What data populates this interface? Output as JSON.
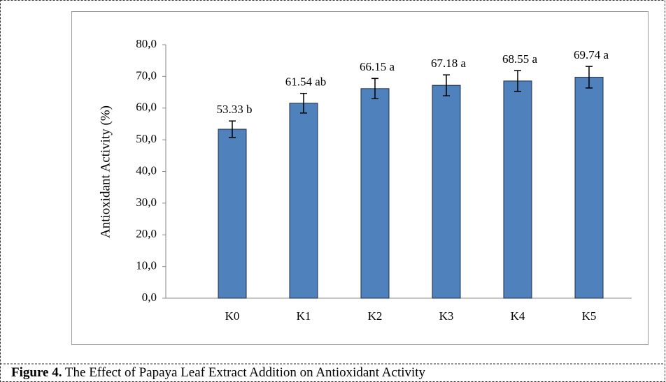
{
  "chart_data": {
    "type": "bar",
    "y_label": "Antioxidant  Activity   (%)",
    "categories": [
      "K0",
      "K1",
      "K2",
      "K3",
      "K4",
      "K5"
    ],
    "values": [
      53.33,
      61.54,
      66.15,
      67.18,
      68.55,
      69.74
    ],
    "value_labels": [
      "53.33 b",
      "61.54 ab",
      "66.15 a",
      "67.18 a",
      "68.55 a",
      "69.74 a"
    ],
    "errors": [
      2.6,
      3.1,
      3.2,
      3.3,
      3.3,
      3.4
    ],
    "color": "#4f81bd",
    "ylim": [
      0,
      80
    ],
    "yticks": [
      {
        "value": 0,
        "label": "0,0"
      },
      {
        "value": 10,
        "label": "10,0"
      },
      {
        "value": 20,
        "label": "20,0"
      },
      {
        "value": 30,
        "label": "30,0"
      },
      {
        "value": 40,
        "label": "40,0"
      },
      {
        "value": 50,
        "label": "50,0"
      },
      {
        "value": 60,
        "label": "60,0"
      },
      {
        "value": 70,
        "label": "70,0"
      },
      {
        "value": 80,
        "label": "80,0"
      }
    ],
    "grid": false,
    "caption_label": "Figure 4.",
    "caption": "The Effect of Papaya Leaf Extract Addition on Antioxidant Activity"
  }
}
